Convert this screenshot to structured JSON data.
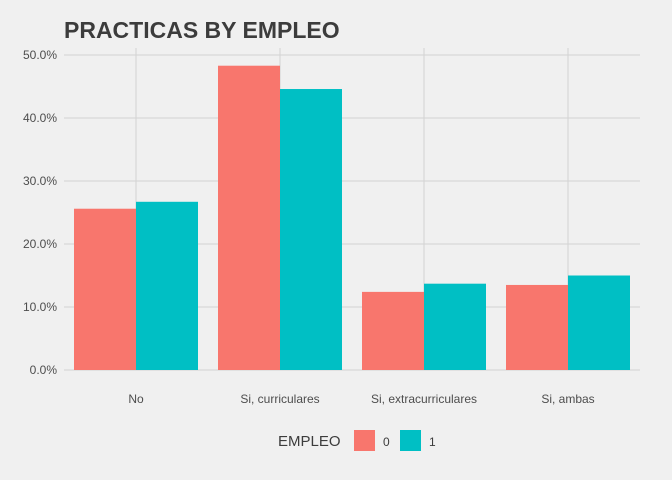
{
  "chart_data": {
    "type": "bar",
    "title": "PRACTICAS BY EMPLEO",
    "xlabel": "",
    "ylabel": "",
    "categories": [
      "No",
      "Si, curriculares",
      "Si, extracurriculares",
      "Si, ambas"
    ],
    "series": [
      {
        "name": "0",
        "color": "#f8766d",
        "values": [
          25.6,
          48.3,
          12.4,
          13.5
        ]
      },
      {
        "name": "1",
        "color": "#00bfc4",
        "values": [
          26.7,
          44.6,
          13.7,
          15.0
        ]
      }
    ],
    "ylim": [
      0,
      50
    ],
    "yticks": [
      0,
      10,
      20,
      30,
      40,
      50
    ],
    "ytick_labels": [
      "0.0%",
      "10.0%",
      "20.0%",
      "30.0%",
      "40.0%",
      "50.0%"
    ],
    "grid": true,
    "legend": {
      "title": "EMPLEO",
      "position": "bottom"
    }
  }
}
